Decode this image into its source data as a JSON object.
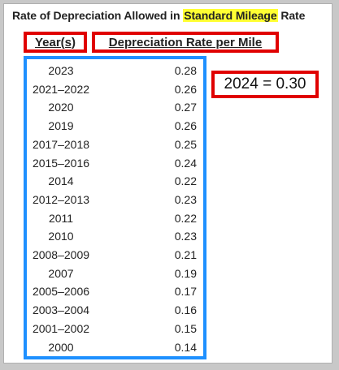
{
  "title": {
    "prefix": "Rate of Depreciation Allowed in ",
    "highlight": "Standard Mileage",
    "suffix": " Rate"
  },
  "headers": {
    "year": "Year(s)",
    "rate": "Depreciation Rate per Mile"
  },
  "note": "2024 = 0.30",
  "colors": {
    "red_box": "#e00000",
    "blue_box": "#1e90ff",
    "highlight": "#ffff33"
  },
  "rows": [
    {
      "year": "2023",
      "rate": "0.28"
    },
    {
      "year": "2021–2022",
      "rate": "0.26"
    },
    {
      "year": "2020",
      "rate": "0.27"
    },
    {
      "year": "2019",
      "rate": "0.26"
    },
    {
      "year": "2017–2018",
      "rate": "0.25"
    },
    {
      "year": "2015–2016",
      "rate": "0.24"
    },
    {
      "year": "2014",
      "rate": "0.22"
    },
    {
      "year": "2012–2013",
      "rate": "0.23"
    },
    {
      "year": "2011",
      "rate": "0.22"
    },
    {
      "year": "2010",
      "rate": "0.23"
    },
    {
      "year": "2008–2009",
      "rate": "0.21"
    },
    {
      "year": "2007",
      "rate": "0.19"
    },
    {
      "year": "2005–2006",
      "rate": "0.17"
    },
    {
      "year": "2003–2004",
      "rate": "0.16"
    },
    {
      "year": "2001–2002",
      "rate": "0.15"
    },
    {
      "year": "2000",
      "rate": "0.14"
    }
  ]
}
